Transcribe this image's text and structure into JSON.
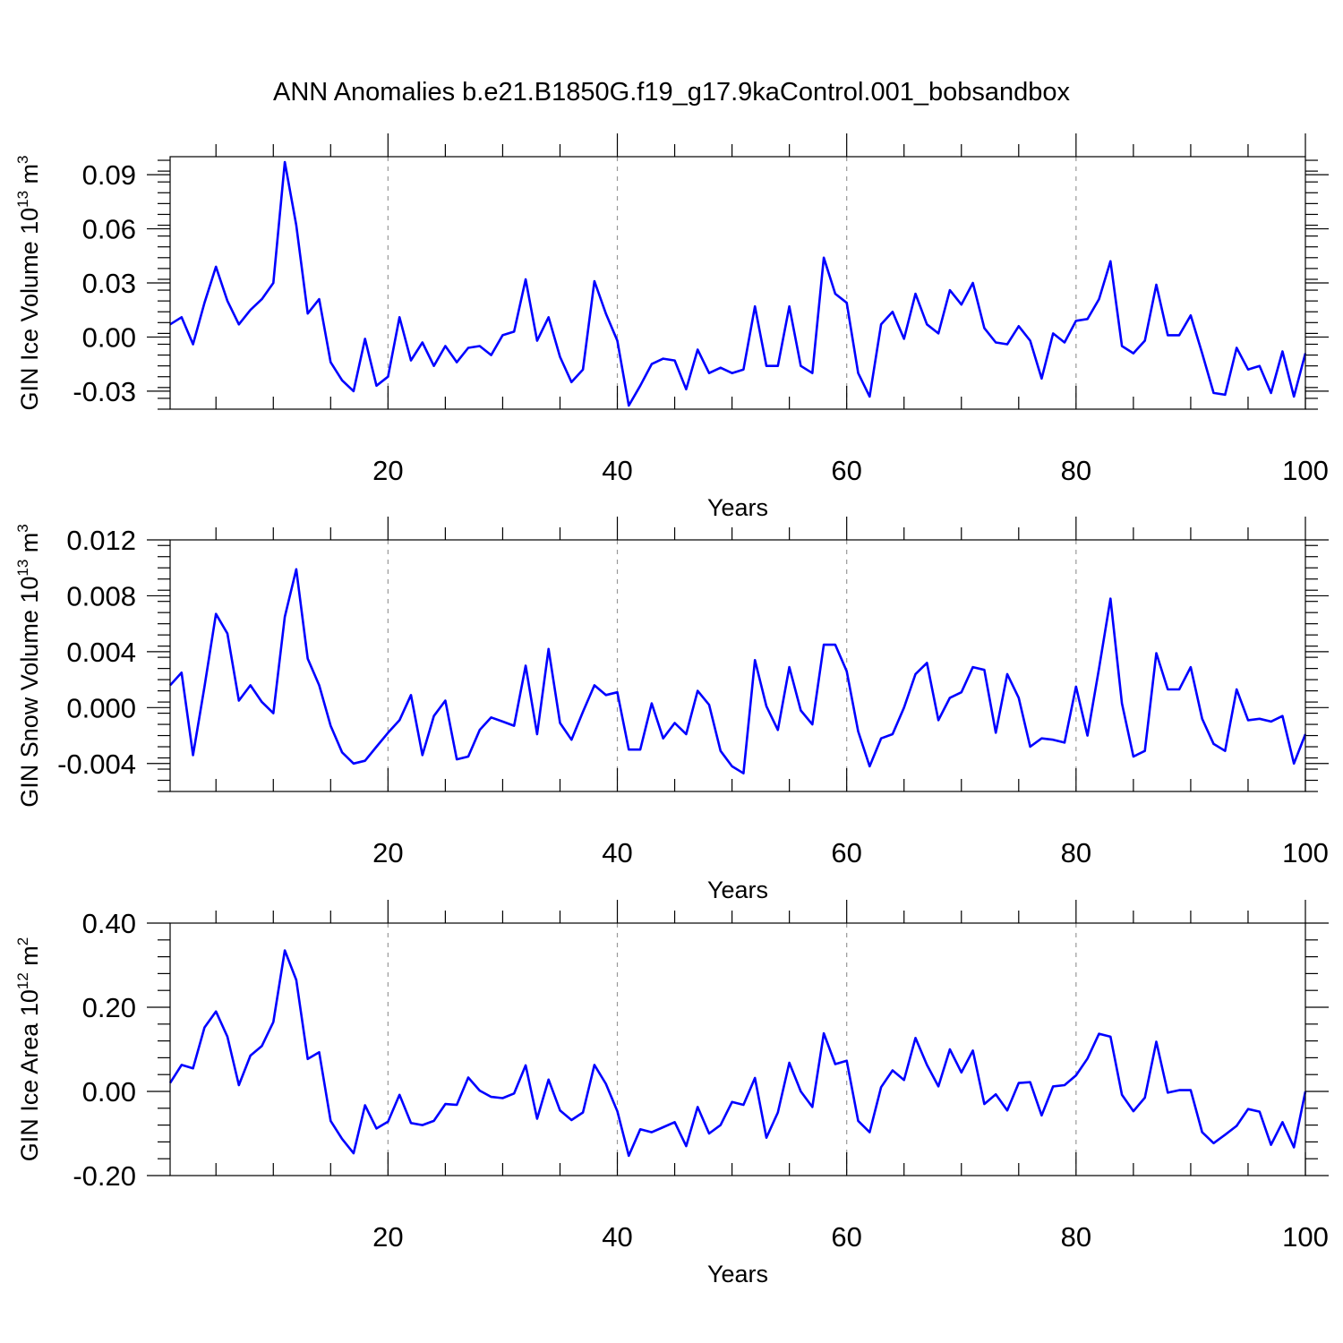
{
  "title": "ANN Anomalies b.e21.B1850G.f19_g17.9kaControl.001_bobsandbox",
  "colors": {
    "line": "#0000ff",
    "grid": "#999999",
    "axes": "#000000"
  },
  "chart_data": [
    {
      "type": "line",
      "xlabel": "Years",
      "ylabel": "GIN Ice Volume 10",
      "ylabel_sup": "13",
      "ylabel_unit": " m",
      "ylabel_unit_sup": "3",
      "xlim": [
        1,
        100
      ],
      "ylim": [
        -0.04,
        0.1
      ],
      "xticks": [
        20,
        40,
        60,
        80,
        100
      ],
      "yticks": [
        -0.03,
        0.0,
        0.03,
        0.06,
        0.09
      ],
      "ytick_labels": [
        "-0.03",
        "0.00",
        "0.03",
        "0.06",
        "0.09"
      ],
      "grid": "vertical dashed",
      "series": [
        {
          "values": [
            0.007,
            0.011,
            -0.004,
            0.019,
            0.039,
            0.02,
            0.007,
            0.015,
            0.021,
            0.03,
            0.097,
            0.062,
            0.013,
            0.021,
            -0.014,
            -0.024,
            -0.03,
            -0.001,
            -0.027,
            -0.022,
            0.011,
            -0.013,
            -0.003,
            -0.016,
            -0.005,
            -0.014,
            -0.006,
            -0.005,
            -0.01,
            0.001,
            0.003,
            0.032,
            -0.002,
            0.011,
            -0.011,
            -0.025,
            -0.018,
            0.031,
            0.013,
            -0.002,
            -0.038,
            -0.027,
            -0.015,
            -0.012,
            -0.013,
            -0.029,
            -0.007,
            -0.02,
            -0.017,
            -0.02,
            -0.018,
            0.017,
            -0.016,
            -0.016,
            0.017,
            -0.016,
            -0.02,
            0.044,
            0.024,
            0.019,
            -0.02,
            -0.033,
            0.007,
            0.014,
            -0.001,
            0.024,
            0.007,
            0.002,
            0.026,
            0.018,
            0.03,
            0.005,
            -0.003,
            -0.004,
            0.006,
            -0.002,
            -0.023,
            0.002,
            -0.003,
            0.009,
            0.01,
            0.021,
            0.042,
            -0.005,
            -0.009,
            -0.002,
            0.029,
            0.001,
            0.001,
            0.012,
            -0.009,
            -0.031,
            -0.032,
            -0.006,
            -0.018,
            -0.016,
            -0.031,
            -0.008,
            -0.033,
            -0.009
          ]
        }
      ]
    },
    {
      "type": "line",
      "xlabel": "Years",
      "ylabel": "GIN Snow Volume 10",
      "ylabel_sup": "13",
      "ylabel_unit": " m",
      "ylabel_unit_sup": "3",
      "xlim": [
        1,
        100
      ],
      "ylim": [
        -0.006,
        0.012
      ],
      "xticks": [
        20,
        40,
        60,
        80,
        100
      ],
      "yticks": [
        -0.004,
        0.0,
        0.004,
        0.008,
        0.012
      ],
      "ytick_labels": [
        "-0.004",
        "0.000",
        "0.004",
        "0.008",
        "0.012"
      ],
      "grid": "vertical dashed",
      "series": [
        {
          "values": [
            0.0016,
            0.0025,
            -0.0034,
            0.0015,
            0.0067,
            0.0053,
            0.0005,
            0.0016,
            0.0004,
            -0.0004,
            0.0065,
            0.0099,
            0.0035,
            0.0016,
            -0.0013,
            -0.0032,
            -0.004,
            -0.0038,
            -0.0028,
            -0.0018,
            -0.0009,
            0.0009,
            -0.0034,
            -0.0006,
            0.0005,
            -0.0037,
            -0.0035,
            -0.0016,
            -0.0007,
            -0.001,
            -0.0013,
            0.003,
            -0.0019,
            0.0042,
            -0.0011,
            -0.0023,
            -0.0003,
            0.0016,
            0.0009,
            0.0011,
            -0.003,
            -0.003,
            0.0003,
            -0.0022,
            -0.0011,
            -0.0019,
            0.0012,
            0.0002,
            -0.0031,
            -0.0042,
            -0.0047,
            0.0034,
            0.0001,
            -0.0016,
            0.0029,
            -0.0002,
            -0.0012,
            0.0045,
            0.0045,
            0.0026,
            -0.0017,
            -0.0042,
            -0.0022,
            -0.0019,
            0.0,
            0.0024,
            0.0032,
            -0.0009,
            0.0007,
            0.0011,
            0.0029,
            0.0027,
            -0.0018,
            0.0024,
            0.0007,
            -0.0028,
            -0.0022,
            -0.0023,
            -0.0025,
            0.0015,
            -0.002,
            0.0028,
            0.0078,
            0.0003,
            -0.0035,
            -0.0031,
            0.0039,
            0.0013,
            0.0013,
            0.0029,
            -0.0008,
            -0.0026,
            -0.0031,
            0.0013,
            -0.0009,
            -0.0008,
            -0.001,
            -0.0006,
            -0.004,
            -0.0019
          ]
        }
      ]
    },
    {
      "type": "line",
      "xlabel": "Years",
      "ylabel": "GIN Ice Area 10",
      "ylabel_sup": "12",
      "ylabel_unit": " m",
      "ylabel_unit_sup": "2",
      "xlim": [
        1,
        100
      ],
      "ylim": [
        -0.2,
        0.4
      ],
      "xticks": [
        20,
        40,
        60,
        80,
        100
      ],
      "yticks": [
        -0.2,
        0.0,
        0.2,
        0.4
      ],
      "ytick_labels": [
        "-0.20",
        "0.00",
        "0.20",
        "0.40"
      ],
      "grid": "vertical dashed",
      "series": [
        {
          "values": [
            0.02,
            0.063,
            0.055,
            0.152,
            0.19,
            0.13,
            0.015,
            0.085,
            0.108,
            0.165,
            0.335,
            0.265,
            0.077,
            0.093,
            -0.07,
            -0.113,
            -0.147,
            -0.033,
            -0.088,
            -0.072,
            -0.008,
            -0.075,
            -0.08,
            -0.07,
            -0.03,
            -0.032,
            0.033,
            0.002,
            -0.013,
            -0.016,
            -0.005,
            0.062,
            -0.065,
            0.028,
            -0.045,
            -0.068,
            -0.05,
            0.063,
            0.018,
            -0.047,
            -0.153,
            -0.09,
            -0.097,
            -0.085,
            -0.073,
            -0.13,
            -0.037,
            -0.1,
            -0.08,
            -0.025,
            -0.032,
            0.032,
            -0.11,
            -0.05,
            0.068,
            0.0,
            -0.037,
            0.138,
            0.065,
            0.073,
            -0.07,
            -0.097,
            0.01,
            0.05,
            0.027,
            0.127,
            0.063,
            0.012,
            0.1,
            0.045,
            0.097,
            -0.03,
            -0.007,
            -0.045,
            0.02,
            0.022,
            -0.057,
            0.012,
            0.015,
            0.038,
            0.078,
            0.137,
            0.13,
            -0.008,
            -0.047,
            -0.015,
            0.118,
            -0.003,
            0.003,
            0.003,
            -0.097,
            -0.123,
            -0.103,
            -0.082,
            -0.042,
            -0.048,
            -0.127,
            -0.073,
            -0.133,
            0.0
          ]
        }
      ]
    }
  ]
}
